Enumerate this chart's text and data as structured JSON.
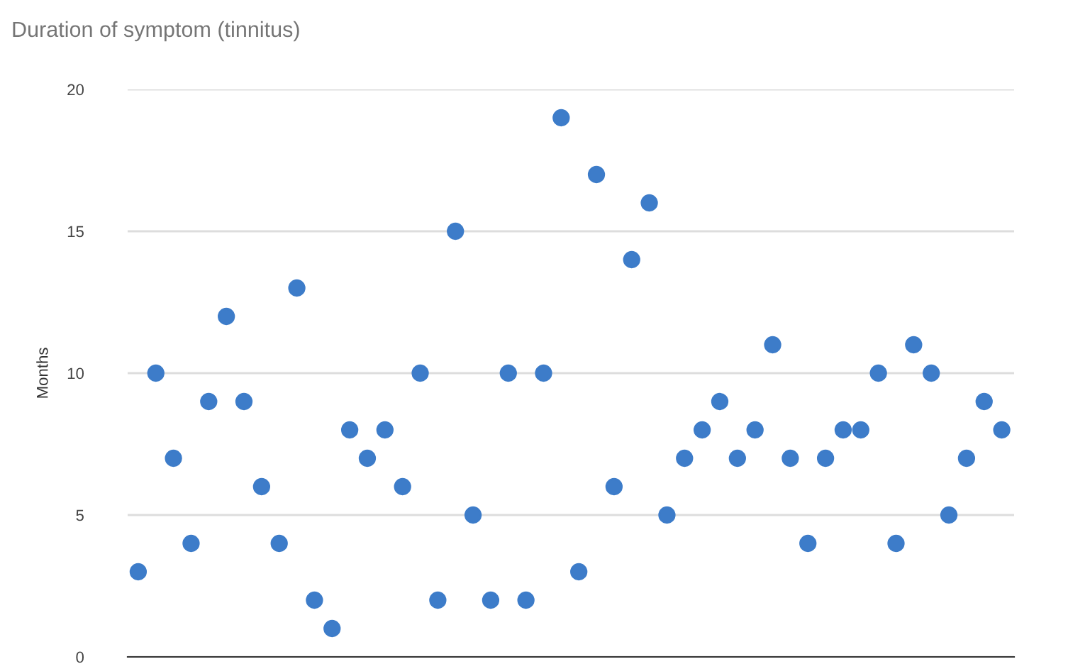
{
  "chart_data": {
    "type": "scatter",
    "title": "Duration of symptom (tinnitus)",
    "ylabel": "Months",
    "categories": [
      null,
      null,
      null,
      null,
      null,
      null,
      null,
      null,
      null,
      null,
      null,
      null,
      null,
      null,
      null,
      null,
      null,
      null,
      null,
      null,
      null,
      null,
      null,
      null,
      null,
      null,
      null,
      null,
      null,
      null,
      null,
      null,
      null,
      null,
      null,
      null,
      null,
      null,
      null,
      null,
      null,
      null,
      null,
      null,
      null,
      null,
      null,
      null,
      null,
      null
    ],
    "series": [
      {
        "color": "#3d7cc9",
        "values": [
          3,
          10,
          7,
          4,
          9,
          12,
          9,
          6,
          4,
          13,
          2,
          1,
          8,
          7,
          8,
          6,
          10,
          2,
          15,
          5,
          2,
          10,
          2,
          10,
          19,
          3,
          17,
          6,
          14,
          16,
          5,
          7,
          8,
          9,
          7,
          8,
          11,
          7,
          4,
          7,
          8,
          8,
          10,
          4,
          11,
          10,
          5,
          7,
          9,
          8
        ]
      }
    ],
    "ylim": [
      0,
      20
    ],
    "yticks": [
      0,
      5,
      10,
      15,
      20
    ],
    "grid": "y",
    "marker": "circle",
    "tick_labels": "y"
  }
}
